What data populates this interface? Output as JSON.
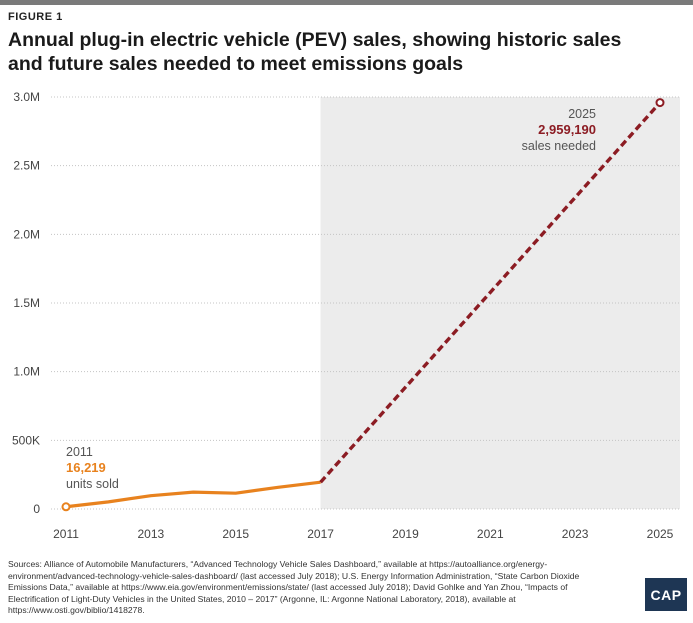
{
  "figure_label": "FIGURE 1",
  "title": "Annual plug-in electric vehicle (PEV) sales, showing historic sales and future sales needed to meet emissions goals",
  "chart_data": {
    "type": "line",
    "x_ticks": [
      "2011",
      "2013",
      "2015",
      "2017",
      "2019",
      "2021",
      "2023",
      "2025"
    ],
    "y_ticks": [
      "0",
      "500K",
      "1.0M",
      "1.5M",
      "2.0M",
      "2.5M",
      "3.0M"
    ],
    "xlim": [
      2011,
      2025
    ],
    "ylim": [
      0,
      3000000
    ],
    "grid": "horizontal",
    "shaded_region": [
      2017,
      2025.5
    ],
    "series": [
      {
        "kind": "historic",
        "color": "#e8821e",
        "style": "solid",
        "points": [
          {
            "x": 2011,
            "y": 16219
          },
          {
            "x": 2012,
            "y": 52000
          },
          {
            "x": 2013,
            "y": 97000
          },
          {
            "x": 2014,
            "y": 123000
          },
          {
            "x": 2015,
            "y": 115000
          },
          {
            "x": 2016,
            "y": 158000
          },
          {
            "x": 2017,
            "y": 195000
          }
        ]
      },
      {
        "kind": "needed",
        "color": "#8c1c23",
        "style": "dashed",
        "points": [
          {
            "x": 2017,
            "y": 195000
          },
          {
            "x": 2025,
            "y": 2959190
          }
        ]
      }
    ],
    "annotations": [
      {
        "year": "2011",
        "value": "16,219",
        "note": "units sold"
      },
      {
        "year": "2025",
        "value": "2,959,190",
        "note": "sales needed"
      }
    ]
  },
  "sources": "Sources: Alliance of Automobile Manufacturers, “Advanced Technology Vehicle Sales Dashboard,” available at https://autoalliance.org/energy-environment/advanced-technology-vehicle-sales-dashboard/ (last accessed July 2018); U.S. Energy Information Administration, “State Carbon Dioxide Emissions Data,” available at https://www.eia.gov/environment/emissions/state/ (last accessed July 2018); David Gohlke and Yan Zhou, “Impacts of Electrification of Light-Duty Vehicles in the United States, 2010 – 2017” (Argonne, IL: Argonne National Laboratory, 2018), available at https://www.osti.gov/biblio/1418278.",
  "logo_text": "CAP"
}
